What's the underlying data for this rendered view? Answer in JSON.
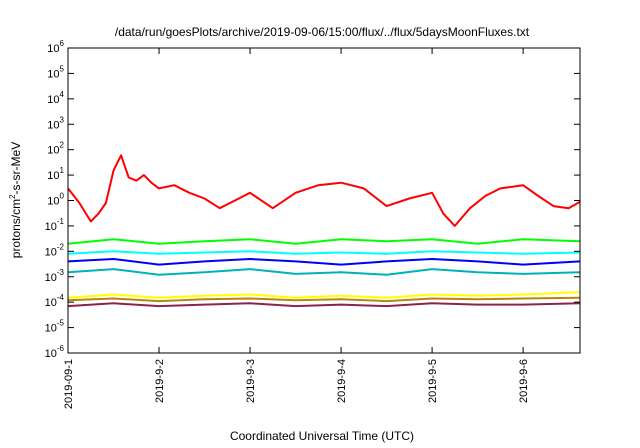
{
  "chart_data": {
    "type": "line",
    "title": "/data/run/goesPlots/archive/2019-09-06/15:00/flux/../flux/5daysMoonFluxes.txt",
    "xlabel": "Coordinated Universal Time (UTC)",
    "ylabel": {
      "base": "protons/cm",
      "sup": "2",
      "rest": "-s-sr-MeV"
    },
    "y_scale": "log",
    "ylim": [
      1e-06,
      1000000.0
    ],
    "xlim": [
      "2019-09-01 00:00",
      "2019-09-06 15:00"
    ],
    "y_ticks": [
      {
        "value": 1e-06,
        "base": "10",
        "exp": "-6"
      },
      {
        "value": 1e-05,
        "base": "10",
        "exp": "-5"
      },
      {
        "value": 0.0001,
        "base": "10",
        "exp": "-4"
      },
      {
        "value": 0.001,
        "base": "10",
        "exp": "-3"
      },
      {
        "value": 0.01,
        "base": "10",
        "exp": "-2"
      },
      {
        "value": 0.1,
        "base": "10",
        "exp": "-1"
      },
      {
        "value": 1,
        "base": "10",
        "exp": "0"
      },
      {
        "value": 10.0,
        "base": "10",
        "exp": "1"
      },
      {
        "value": 100.0,
        "base": "10",
        "exp": "2"
      },
      {
        "value": 1000.0,
        "base": "10",
        "exp": "3"
      },
      {
        "value": 10000.0,
        "base": "10",
        "exp": "4"
      },
      {
        "value": 100000.0,
        "base": "10",
        "exp": "5"
      },
      {
        "value": 1000000.0,
        "base": "10",
        "exp": "6"
      }
    ],
    "x_ticks": [
      "2019-09-1",
      "2019-9-2",
      "2019-9-3",
      "2019-9-4",
      "2019-9-5",
      "2019-9-6"
    ],
    "grid": false,
    "legend": "none",
    "series": [
      {
        "color": "#ff0000",
        "x": [
          "2019-09-01 00:00",
          "2019-09-01 03:00",
          "2019-09-01 06:00",
          "2019-09-01 08:00",
          "2019-09-01 10:00",
          "2019-09-01 12:00",
          "2019-09-01 14:00",
          "2019-09-01 16:00",
          "2019-09-01 18:00",
          "2019-09-01 20:00",
          "2019-09-01 22:00",
          "2019-09-02 00:00",
          "2019-09-02 04:00",
          "2019-09-02 08:00",
          "2019-09-02 12:00",
          "2019-09-02 16:00",
          "2019-09-02 20:00",
          "2019-09-03 00:00",
          "2019-09-03 06:00",
          "2019-09-03 12:00",
          "2019-09-03 18:00",
          "2019-09-04 00:00",
          "2019-09-04 06:00",
          "2019-09-04 12:00",
          "2019-09-04 18:00",
          "2019-09-05 00:00",
          "2019-09-05 03:00",
          "2019-09-05 06:00",
          "2019-09-05 10:00",
          "2019-09-05 14:00",
          "2019-09-05 18:00",
          "2019-09-06 00:00",
          "2019-09-06 04:00",
          "2019-09-06 08:00",
          "2019-09-06 12:00",
          "2019-09-06 15:00"
        ],
        "y": [
          3,
          0.8,
          0.15,
          0.3,
          0.8,
          15,
          60,
          8,
          6,
          10,
          5,
          3,
          4,
          2,
          1.2,
          0.5,
          1,
          2,
          0.5,
          2,
          4,
          5,
          3,
          0.6,
          1.2,
          2,
          0.3,
          0.1,
          0.5,
          1.5,
          3,
          4,
          1.5,
          0.6,
          0.5,
          0.9
        ]
      },
      {
        "color": "#00ff00",
        "x": [
          "2019-09-01 00:00",
          "2019-09-01 12:00",
          "2019-09-02 00:00",
          "2019-09-02 12:00",
          "2019-09-03 00:00",
          "2019-09-03 12:00",
          "2019-09-04 00:00",
          "2019-09-04 12:00",
          "2019-09-05 00:00",
          "2019-09-05 12:00",
          "2019-09-06 00:00",
          "2019-09-06 15:00"
        ],
        "y": [
          0.02,
          0.03,
          0.02,
          0.025,
          0.03,
          0.02,
          0.03,
          0.025,
          0.03,
          0.02,
          0.03,
          0.025
        ]
      },
      {
        "color": "#00ffff",
        "x": [
          "2019-09-01 00:00",
          "2019-09-01 12:00",
          "2019-09-02 00:00",
          "2019-09-02 12:00",
          "2019-09-03 00:00",
          "2019-09-03 12:00",
          "2019-09-04 00:00",
          "2019-09-04 12:00",
          "2019-09-05 00:00",
          "2019-09-05 12:00",
          "2019-09-06 00:00",
          "2019-09-06 15:00"
        ],
        "y": [
          0.008,
          0.01,
          0.008,
          0.009,
          0.01,
          0.008,
          0.009,
          0.008,
          0.01,
          0.009,
          0.008,
          0.009
        ]
      },
      {
        "color": "#0000ff",
        "x": [
          "2019-09-01 00:00",
          "2019-09-01 12:00",
          "2019-09-02 00:00",
          "2019-09-02 12:00",
          "2019-09-03 00:00",
          "2019-09-03 12:00",
          "2019-09-04 00:00",
          "2019-09-04 12:00",
          "2019-09-05 00:00",
          "2019-09-05 12:00",
          "2019-09-06 00:00",
          "2019-09-06 15:00"
        ],
        "y": [
          0.004,
          0.005,
          0.003,
          0.004,
          0.005,
          0.004,
          0.003,
          0.004,
          0.005,
          0.004,
          0.003,
          0.004
        ]
      },
      {
        "color": "#00b3b3",
        "x": [
          "2019-09-01 00:00",
          "2019-09-01 12:00",
          "2019-09-02 00:00",
          "2019-09-02 12:00",
          "2019-09-03 00:00",
          "2019-09-03 12:00",
          "2019-09-04 00:00",
          "2019-09-04 12:00",
          "2019-09-05 00:00",
          "2019-09-05 12:00",
          "2019-09-06 00:00",
          "2019-09-06 15:00"
        ],
        "y": [
          0.0015,
          0.002,
          0.0012,
          0.0015,
          0.002,
          0.0013,
          0.0015,
          0.0012,
          0.002,
          0.0015,
          0.0013,
          0.0015
        ]
      },
      {
        "color": "#ffff00",
        "x": [
          "2019-09-01 00:00",
          "2019-09-01 12:00",
          "2019-09-02 00:00",
          "2019-09-02 12:00",
          "2019-09-03 00:00",
          "2019-09-03 12:00",
          "2019-09-04 00:00",
          "2019-09-04 12:00",
          "2019-09-05 00:00",
          "2019-09-05 12:00",
          "2019-09-06 00:00",
          "2019-09-06 15:00"
        ],
        "y": [
          0.00015,
          0.0002,
          0.00015,
          0.00018,
          0.0002,
          0.00015,
          0.00018,
          0.00015,
          0.0002,
          0.00018,
          0.0002,
          0.00025
        ]
      },
      {
        "color": "#b8860b",
        "x": [
          "2019-09-01 00:00",
          "2019-09-01 12:00",
          "2019-09-02 00:00",
          "2019-09-02 12:00",
          "2019-09-03 00:00",
          "2019-09-03 12:00",
          "2019-09-04 00:00",
          "2019-09-04 12:00",
          "2019-09-05 00:00",
          "2019-09-05 12:00",
          "2019-09-06 00:00",
          "2019-09-06 15:00"
        ],
        "y": [
          0.00012,
          0.00014,
          0.00011,
          0.00013,
          0.00014,
          0.00012,
          0.00013,
          0.00011,
          0.00014,
          0.00013,
          0.00014,
          0.00015
        ]
      },
      {
        "color": "#8b2252",
        "x": [
          "2019-09-01 00:00",
          "2019-09-01 12:00",
          "2019-09-02 00:00",
          "2019-09-02 12:00",
          "2019-09-03 00:00",
          "2019-09-03 12:00",
          "2019-09-04 00:00",
          "2019-09-04 12:00",
          "2019-09-05 00:00",
          "2019-09-05 12:00",
          "2019-09-06 00:00",
          "2019-09-06 15:00"
        ],
        "y": [
          7e-05,
          9e-05,
          7e-05,
          8e-05,
          9e-05,
          7e-05,
          8e-05,
          7e-05,
          9e-05,
          8e-05,
          8e-05,
          9e-05
        ]
      }
    ]
  }
}
